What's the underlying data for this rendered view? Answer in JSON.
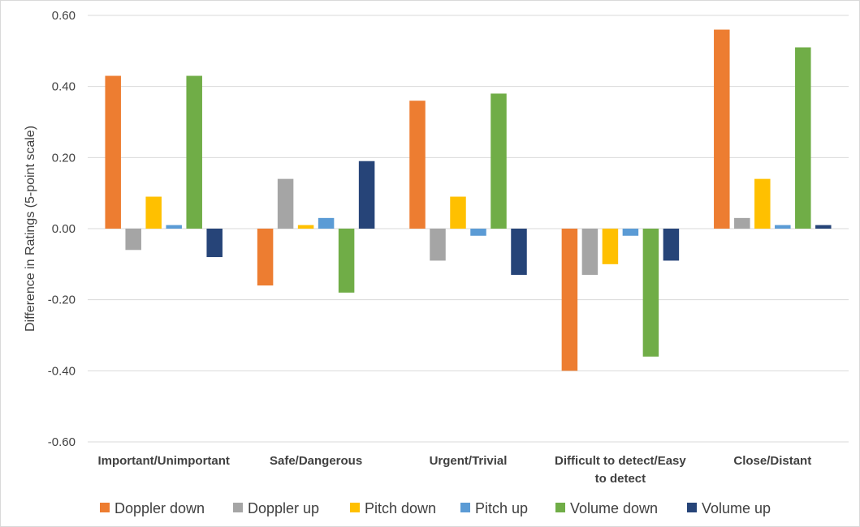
{
  "chart_data": {
    "type": "bar",
    "title": "",
    "xlabel": "",
    "ylabel": "Difference in Ratings (5-point scale)",
    "ylim": [
      -0.6,
      0.6
    ],
    "y_ticks": [
      "-0.60",
      "-0.40",
      "-0.20",
      "0.00",
      "0.20",
      "0.40",
      "0.60"
    ],
    "grid": true,
    "legend_position": "bottom",
    "categories": [
      [
        "Important/Unimportant"
      ],
      [
        "Safe/Dangerous"
      ],
      [
        "Urgent/Trivial"
      ],
      [
        "Difficult to detect/Easy",
        "to detect"
      ],
      [
        "Close/Distant"
      ]
    ],
    "series": [
      {
        "name": "Doppler down",
        "color": "#ed7d31",
        "values": [
          0.43,
          -0.16,
          0.36,
          -0.4,
          0.56
        ]
      },
      {
        "name": "Doppler up",
        "color": "#a5a5a5",
        "values": [
          -0.06,
          0.14,
          -0.09,
          -0.13,
          0.03
        ]
      },
      {
        "name": "Pitch down",
        "color": "#ffc000",
        "values": [
          0.09,
          0.01,
          0.09,
          -0.1,
          0.14
        ]
      },
      {
        "name": "Pitch up",
        "color": "#5b9bd5",
        "values": [
          0.01,
          0.03,
          -0.02,
          -0.02,
          0.01
        ]
      },
      {
        "name": "Volume down",
        "color": "#70ad47",
        "values": [
          0.43,
          -0.18,
          0.38,
          -0.36,
          0.51
        ]
      },
      {
        "name": "Volume up",
        "color": "#264478",
        "values": [
          -0.08,
          0.19,
          -0.13,
          -0.09,
          0.01
        ]
      }
    ]
  }
}
